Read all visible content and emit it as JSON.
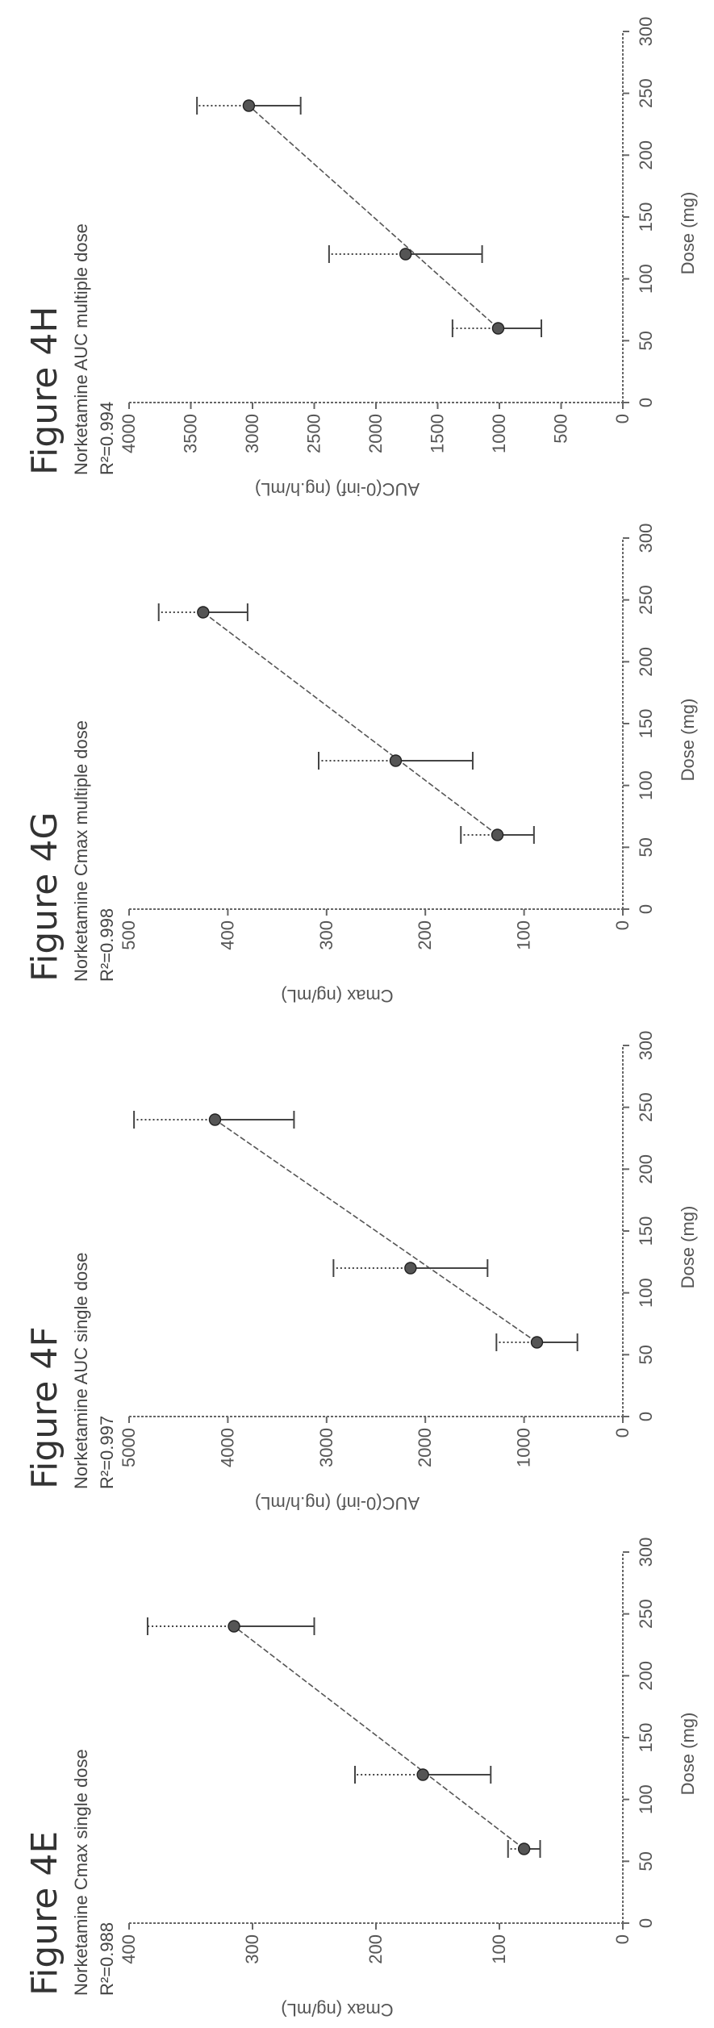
{
  "chart_data": [
    {
      "type": "scatter",
      "title": "Figure 4E",
      "subtitle": "Norketamine Cmax single dose",
      "r2_label": "R²=0.988",
      "xlabel": "Dose (mg)",
      "ylabel": "Cmax (ng/mL)",
      "xlim": [
        0,
        300
      ],
      "ylim": [
        0,
        400
      ],
      "xticks": [
        "0",
        "50",
        "100",
        "150",
        "200",
        "250",
        "300"
      ],
      "yticks": [
        "0",
        "100",
        "200",
        "300",
        "400"
      ],
      "x": [
        60,
        120,
        240
      ],
      "y": [
        80,
        162,
        315
      ],
      "err_low": [
        13,
        55,
        65
      ],
      "err_high": [
        13,
        55,
        70
      ],
      "fit": {
        "x": [
          60,
          240
        ],
        "y": [
          80,
          315
        ]
      }
    },
    {
      "type": "scatter",
      "title": "Figure 4F",
      "subtitle": "Norketamine AUC single dose",
      "r2_label": "R²=0.997",
      "xlabel": "Dose (mg)",
      "ylabel": "AUC(0-inf) (ng.h/mL)",
      "xlim": [
        0,
        300
      ],
      "ylim": [
        0,
        5000
      ],
      "xticks": [
        "0",
        "50",
        "100",
        "150",
        "200",
        "250",
        "300"
      ],
      "yticks": [
        "0",
        "1000",
        "2000",
        "3000",
        "4000",
        "5000"
      ],
      "x": [
        60,
        120,
        240
      ],
      "y": [
        870,
        2150,
        4130
      ],
      "err_low": [
        410,
        780,
        800
      ],
      "err_high": [
        410,
        780,
        820
      ],
      "fit": {
        "x": [
          60,
          240
        ],
        "y": [
          870,
          4130
        ]
      }
    },
    {
      "type": "scatter",
      "title": "Figure 4G",
      "subtitle": "Norketamine Cmax multiple dose",
      "r2_label": "R²=0.998",
      "xlabel": "Dose (mg)",
      "ylabel": "Cmax (ng/mL)",
      "xlim": [
        0,
        300
      ],
      "ylim": [
        0,
        500
      ],
      "xticks": [
        "0",
        "50",
        "100",
        "150",
        "200",
        "250",
        "300"
      ],
      "yticks": [
        "0",
        "100",
        "200",
        "300",
        "400",
        "500"
      ],
      "x": [
        60,
        120,
        240
      ],
      "y": [
        127,
        230,
        425
      ],
      "err_low": [
        37,
        78,
        45
      ],
      "err_high": [
        37,
        78,
        45
      ],
      "fit": {
        "x": [
          60,
          240
        ],
        "y": [
          127,
          425
        ]
      }
    },
    {
      "type": "scatter",
      "title": "Figure 4H",
      "subtitle": "Norketamine AUC multiple dose",
      "r2_label": "R²=0.994",
      "xlabel": "Dose (mg)",
      "ylabel": "AUC(0-inf) (ng.h/mL)",
      "xlim": [
        0,
        300
      ],
      "ylim": [
        0,
        4000
      ],
      "xticks": [
        "0",
        "50",
        "100",
        "150",
        "200",
        "250",
        "300"
      ],
      "yticks": [
        "0",
        "500",
        "1000",
        "1500",
        "2000",
        "2500",
        "3000",
        "3500",
        "4000"
      ],
      "x": [
        60,
        120,
        240
      ],
      "y": [
        1010,
        1760,
        3030
      ],
      "err_low": [
        350,
        620,
        420
      ],
      "err_high": [
        370,
        620,
        420
      ],
      "fit": {
        "x": [
          60,
          240
        ],
        "y": [
          1010,
          3030
        ]
      }
    }
  ]
}
